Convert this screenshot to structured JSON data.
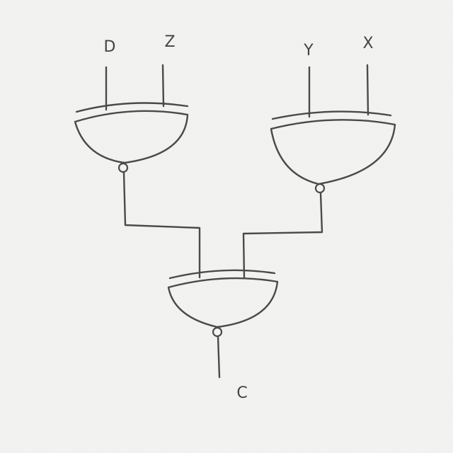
{
  "inputs": {
    "d": "D",
    "z": "Z",
    "y": "Y",
    "x": "X"
  },
  "output": {
    "label": "C"
  },
  "gates": {
    "left": "XNOR",
    "right": "XNOR",
    "bottom": "XNOR"
  }
}
